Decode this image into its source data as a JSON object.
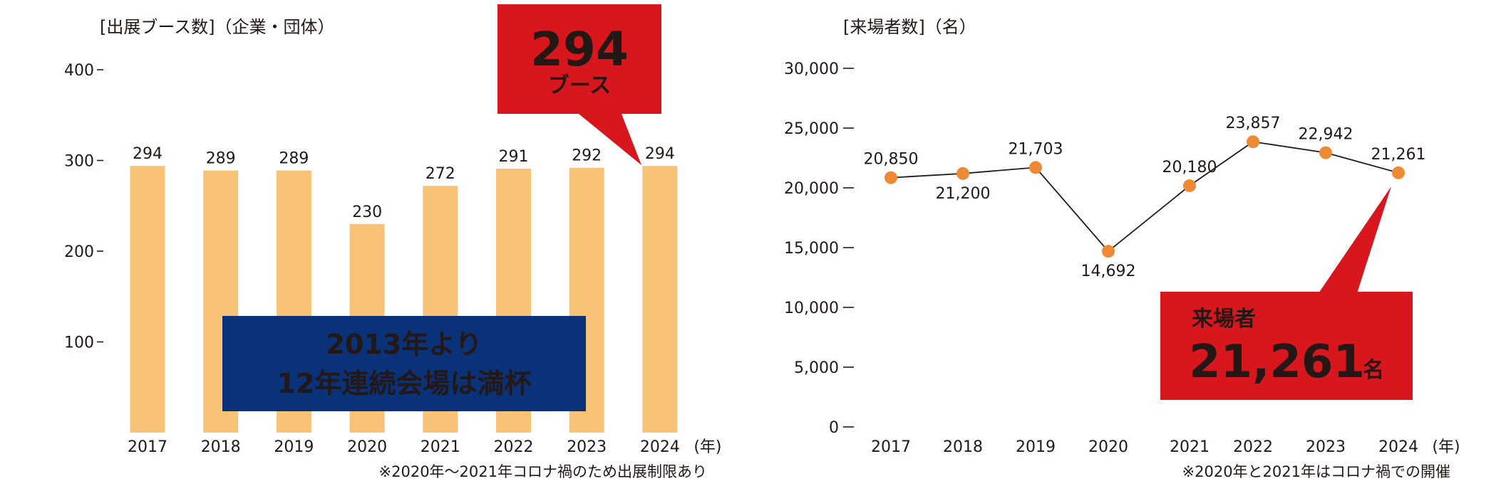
{
  "colors": {
    "bar": "#f8c377",
    "line": "#231815",
    "point": "#ee8a33",
    "callout_red": "#d7161d",
    "banner_navy": "#0a3278",
    "text": "#231815",
    "white": "#ffffff"
  },
  "chart_data": [
    {
      "type": "bar",
      "ylabel": "[出展ブース数]（企業・団体）",
      "categories": [
        "2017",
        "2018",
        "2019",
        "2020",
        "2021",
        "2022",
        "2023",
        "2024"
      ],
      "x_unit": "(年)",
      "values": [
        294,
        289,
        289,
        230,
        272,
        291,
        292,
        294
      ],
      "data_labels": [
        "294",
        "289",
        "289",
        "230",
        "272",
        "291",
        "292",
        "294"
      ],
      "ylim": [
        0,
        400
      ],
      "y_ticks": [
        100,
        200,
        300,
        400
      ],
      "y_tick_labels": [
        "100",
        "200",
        "300",
        "400"
      ],
      "grid": false,
      "legend": "none",
      "callout": {
        "value": "294",
        "unit": "ブース",
        "target_category": "2024"
      },
      "banner": {
        "line1": "2013年より",
        "line2": "12年連続会場は満杯"
      },
      "footnote": "※2020年～2021年コロナ禍のため出展制限あり"
    },
    {
      "type": "line",
      "ylabel": "[来場者数]（名）",
      "categories": [
        "2017",
        "2018",
        "2019",
        "2020",
        "2021",
        "2022",
        "2023",
        "2024"
      ],
      "x_unit": "(年)",
      "values": [
        20850,
        21200,
        21703,
        14692,
        20180,
        23857,
        22942,
        21261
      ],
      "data_labels": [
        "20,850",
        "21,200",
        "21,703",
        "14,692",
        "20,180",
        "23,857",
        "22,942",
        "21,261"
      ],
      "ylim": [
        0,
        30000
      ],
      "y_ticks": [
        0,
        5000,
        10000,
        15000,
        20000,
        25000,
        30000
      ],
      "y_tick_labels": [
        "0",
        "5,000",
        "10,000",
        "15,000",
        "20,000",
        "25,000",
        "30,000"
      ],
      "grid": false,
      "legend": "none",
      "callout": {
        "label": "来場者",
        "value": "21,261",
        "unit": "名",
        "target_category": "2024"
      },
      "footnote": "※2020年と2021年はコロナ禍での開催"
    }
  ]
}
